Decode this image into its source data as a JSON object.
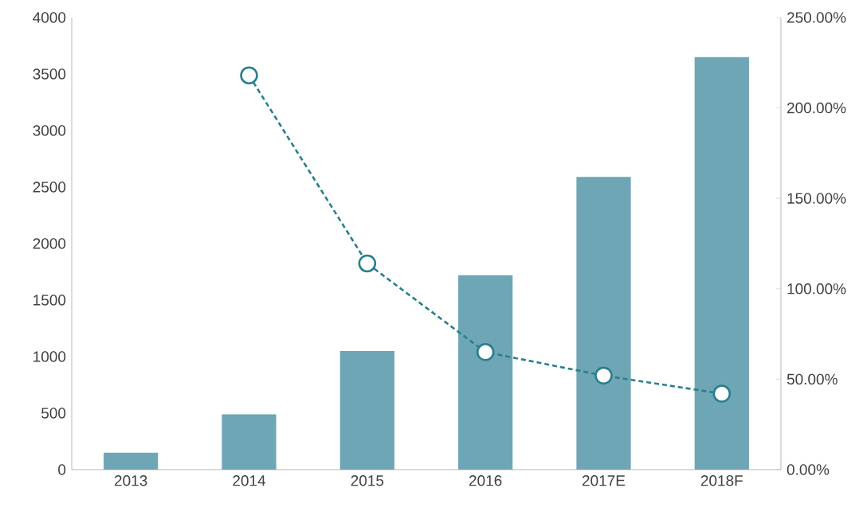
{
  "chart_data": {
    "type": "bar",
    "categories": [
      "2013",
      "2014",
      "2015",
      "2016",
      "2017E",
      "2018F"
    ],
    "series": [
      {
        "color": "#6ea6b6",
        "values": [
          150,
          490,
          1050,
          1720,
          2590,
          3650
        ]
      },
      {
        "type": "line",
        "axis": "y2",
        "color": "#2a7f8e",
        "marker": "circle",
        "line_style": "dashed",
        "values": [
          null,
          218,
          114,
          65,
          52,
          42
        ]
      }
    ],
    "ylim": [
      0,
      4000
    ],
    "yticks": [
      0,
      500,
      1000,
      1500,
      2000,
      2500,
      3000,
      3500,
      4000
    ],
    "y2lim": [
      0,
      250
    ],
    "y2ticks": [
      {
        "value": 0,
        "label": "0.00%"
      },
      {
        "value": 50,
        "label": "50.00%"
      },
      {
        "value": 100,
        "label": "100.00%"
      },
      {
        "value": 150,
        "label": "150.00%"
      },
      {
        "value": 200,
        "label": "200.00%"
      },
      {
        "value": 250,
        "label": "250.00%"
      }
    ],
    "grid": false,
    "legend": false
  }
}
